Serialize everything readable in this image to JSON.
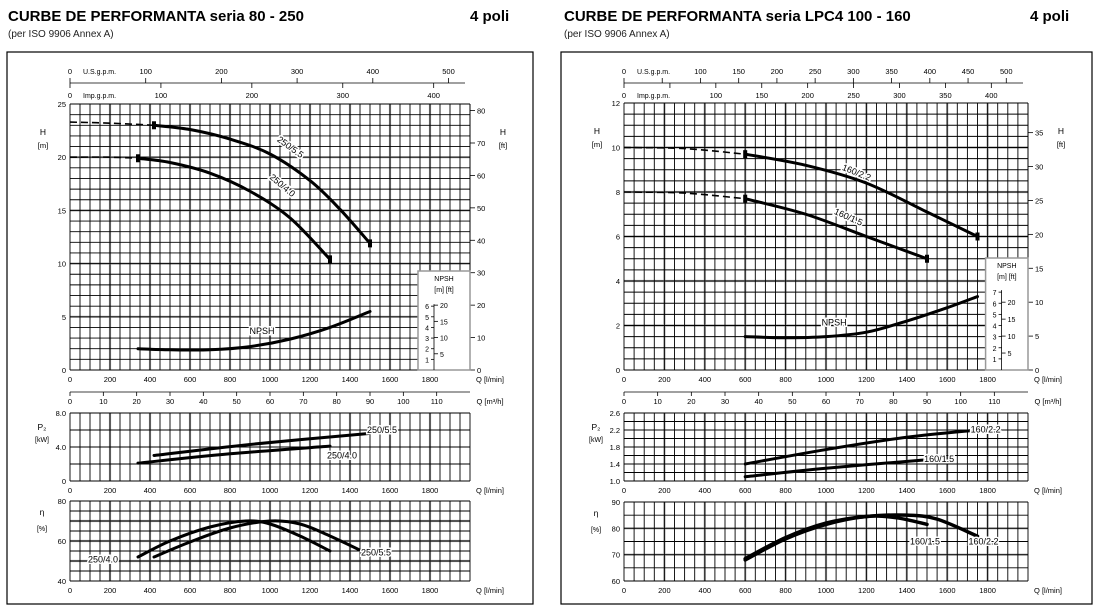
{
  "panels": [
    {
      "title": "CURBE DE PERFORMANTA seria 80 - 250",
      "poles": "4 poli",
      "subtitle": "(per ISO 9906 Annex A)"
    },
    {
      "title": "CURBE DE PERFORMANTA seria LPC4 100 - 160",
      "poles": "4 poli",
      "subtitle": "(per ISO 9906 Annex A)"
    }
  ],
  "chart_data": [
    {
      "type": "line",
      "q_label": "Q [l/min]",
      "xlim": [
        0,
        2000
      ],
      "q_ticks": [
        0,
        200,
        400,
        600,
        800,
        1000,
        1200,
        1400,
        1600,
        1800
      ],
      "flow_axes": {
        "us_label": "U.S.g.p.m.",
        "us_ticks": [
          0,
          100,
          200,
          300,
          400,
          500
        ],
        "us_labels": [
          0,
          100,
          200,
          300,
          400,
          500
        ],
        "imp_label": "Imp.g.p.m.",
        "imp_ticks": [
          0,
          100,
          200,
          300,
          400
        ],
        "imp_labels": [
          0,
          100,
          200,
          300,
          400
        ],
        "m3h_label": "Q [m³/h]",
        "m3h_ticks": [
          0,
          10,
          20,
          30,
          40,
          50,
          60,
          70,
          80,
          90,
          100,
          110
        ]
      },
      "head": {
        "ylabel": "H",
        "yunit": "[m]",
        "ylim": [
          0,
          25
        ],
        "yticks": [
          0,
          5,
          10,
          15,
          20,
          25
        ],
        "minor_step": 1,
        "ft_label": "H",
        "ft_unit": "[ft]",
        "ft_ticks": [
          0,
          10,
          20,
          30,
          40,
          50,
          60,
          70,
          80
        ],
        "curves": [
          {
            "name": "250/5.5",
            "dashed": [
              [
                0,
                23.3
              ],
              [
                200,
                23.2
              ],
              [
                420,
                23.0
              ]
            ],
            "points": [
              [
                420,
                23.0
              ],
              [
                600,
                22.6
              ],
              [
                800,
                21.7
              ],
              [
                1000,
                20.3
              ],
              [
                1200,
                17.8
              ],
              [
                1350,
                15.1
              ],
              [
                1500,
                11.9
              ]
            ]
          },
          {
            "name": "250/4.0",
            "dashed": [
              [
                0,
                20.0
              ],
              [
                200,
                20.0
              ],
              [
                340,
                19.9
              ]
            ],
            "points": [
              [
                340,
                19.9
              ],
              [
                500,
                19.5
              ],
              [
                700,
                18.5
              ],
              [
                900,
                16.8
              ],
              [
                1100,
                14.3
              ],
              [
                1300,
                10.4
              ]
            ]
          },
          {
            "name": "NPSH",
            "points": [
              [
                340,
                2.0
              ],
              [
                500,
                1.9
              ],
              [
                700,
                1.9
              ],
              [
                900,
                2.2
              ],
              [
                1100,
                2.9
              ],
              [
                1300,
                4.0
              ],
              [
                1500,
                5.5
              ]
            ]
          }
        ]
      },
      "npsh_inset": {
        "title": "NPSH",
        "units": "[m] [ft]",
        "m_ticks": [
          1,
          2,
          3,
          4,
          5,
          6
        ],
        "ft_ticks": [
          5,
          10,
          15,
          20
        ]
      },
      "power": {
        "ylabel": "P₂",
        "yunit": "[kW]",
        "ylim": [
          0,
          8
        ],
        "yticks": [
          "0",
          "4.0",
          "8.0"
        ],
        "minor_step": 2,
        "curves": [
          {
            "name": "250/5.5",
            "points": [
              [
                420,
                3.0
              ],
              [
                900,
                4.3
              ],
              [
                1500,
                5.6
              ]
            ]
          },
          {
            "name": "250/4.0",
            "points": [
              [
                340,
                2.1
              ],
              [
                800,
                3.2
              ],
              [
                1300,
                4.1
              ]
            ]
          }
        ]
      },
      "efficiency": {
        "ylabel": "η",
        "yunit": "[%]",
        "ylim": [
          40,
          80
        ],
        "yticks": [
          40,
          60,
          80
        ],
        "minor_step": 5,
        "curves": [
          {
            "name": "250/4.0",
            "points": [
              [
                340,
                52
              ],
              [
                500,
                60
              ],
              [
                700,
                67
              ],
              [
                880,
                70
              ],
              [
                1000,
                68.5
              ],
              [
                1150,
                62.5
              ],
              [
                1300,
                55
              ]
            ]
          },
          {
            "name": "250/5.5",
            "points": [
              [
                420,
                52
              ],
              [
                600,
                59.5
              ],
              [
                800,
                66.5
              ],
              [
                1000,
                70
              ],
              [
                1150,
                68.5
              ],
              [
                1300,
                62.5
              ],
              [
                1500,
                53
              ]
            ]
          }
        ]
      }
    },
    {
      "type": "line",
      "q_label": "Q [l/min]",
      "xlim": [
        0,
        2000
      ],
      "q_ticks": [
        0,
        200,
        400,
        600,
        800,
        1000,
        1200,
        1400,
        1600,
        1800
      ],
      "flow_axes": {
        "us_label": "U.S.g.p.m.",
        "us_ticks": [
          0,
          50,
          100,
          150,
          200,
          250,
          300,
          350,
          400,
          450,
          500
        ],
        "us_labels": [
          0,
          100,
          150,
          200,
          250,
          300,
          350,
          400,
          450,
          500
        ],
        "imp_label": "Imp.g.p.m.",
        "imp_ticks": [
          0,
          50,
          100,
          150,
          200,
          250,
          300,
          350,
          400
        ],
        "imp_labels": [
          0,
          100,
          150,
          200,
          250,
          300,
          350,
          400
        ],
        "m3h_label": "Q [m³/h]",
        "m3h_ticks": [
          0,
          10,
          20,
          30,
          40,
          50,
          60,
          70,
          80,
          90,
          100,
          110
        ]
      },
      "head": {
        "ylabel": "H",
        "yunit": "[m]",
        "ylim": [
          0,
          12
        ],
        "yticks": [
          0,
          2,
          4,
          6,
          8,
          10,
          12
        ],
        "minor_step": 0.5,
        "ft_label": "H",
        "ft_unit": "[ft]",
        "ft_ticks": [
          0,
          5,
          10,
          15,
          20,
          25,
          30,
          35
        ],
        "curves": [
          {
            "name": "160/2.2",
            "dashed": [
              [
                0,
                10.0
              ],
              [
                300,
                9.95
              ],
              [
                600,
                9.7
              ]
            ],
            "points": [
              [
                600,
                9.7
              ],
              [
                900,
                9.2
              ],
              [
                1200,
                8.4
              ],
              [
                1500,
                7.1
              ],
              [
                1750,
                6.0
              ]
            ]
          },
          {
            "name": "160/1.5",
            "dashed": [
              [
                0,
                8.0
              ],
              [
                300,
                7.95
              ],
              [
                600,
                7.7
              ]
            ],
            "points": [
              [
                600,
                7.7
              ],
              [
                900,
                7.0
              ],
              [
                1200,
                6.0
              ],
              [
                1500,
                5.0
              ]
            ]
          },
          {
            "name": "NPSH",
            "points": [
              [
                600,
                1.5
              ],
              [
                800,
                1.45
              ],
              [
                1000,
                1.5
              ],
              [
                1200,
                1.7
              ],
              [
                1400,
                2.2
              ],
              [
                1600,
                2.8
              ],
              [
                1750,
                3.3
              ]
            ]
          }
        ]
      },
      "npsh_inset": {
        "title": "NPSH",
        "units": "[m] [ft]",
        "m_ticks": [
          1,
          2,
          3,
          4,
          5,
          6,
          7
        ],
        "ft_ticks": [
          5,
          10,
          15,
          20
        ]
      },
      "power": {
        "ylabel": "P₂",
        "yunit": "[kW]",
        "ylim": [
          1.0,
          2.6
        ],
        "yticks": [
          "1.0",
          "1.4",
          "1.8",
          "2.2",
          "2.6"
        ],
        "minor_step": 0.2,
        "curves": [
          {
            "name": "160/2.2",
            "points": [
              [
                600,
                1.4
              ],
              [
                1000,
                1.74
              ],
              [
                1400,
                2.03
              ],
              [
                1750,
                2.2
              ]
            ]
          },
          {
            "name": "160/1.5",
            "points": [
              [
                600,
                1.1
              ],
              [
                1000,
                1.3
              ],
              [
                1500,
                1.5
              ]
            ]
          }
        ]
      },
      "efficiency": {
        "ylabel": "η",
        "yunit": "[%]",
        "ylim": [
          60,
          90
        ],
        "yticks": [
          60,
          70,
          80,
          90
        ],
        "minor_step": 5,
        "curves": [
          {
            "name": "160/1.5",
            "points": [
              [
                600,
                68
              ],
              [
                800,
                76
              ],
              [
                1000,
                81.5
              ],
              [
                1200,
                84.5
              ],
              [
                1350,
                84
              ],
              [
                1500,
                81.5
              ]
            ]
          },
          {
            "name": "160/2.2",
            "points": [
              [
                600,
                68.5
              ],
              [
                800,
                76.5
              ],
              [
                1000,
                82
              ],
              [
                1200,
                84.5
              ],
              [
                1400,
                85
              ],
              [
                1550,
                83.5
              ],
              [
                1750,
                77
              ]
            ]
          }
        ]
      }
    }
  ]
}
